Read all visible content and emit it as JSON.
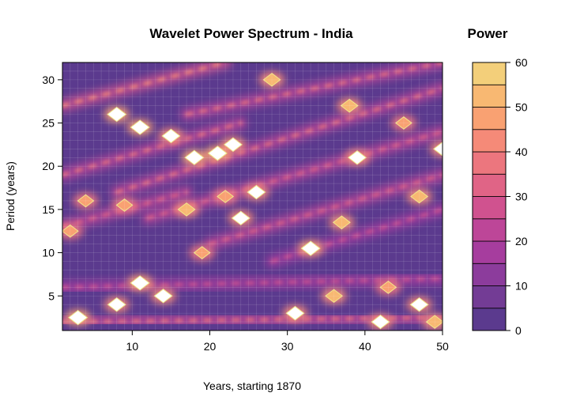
{
  "chart_data": {
    "type": "heatmap",
    "subtype": "filled-contour wavelet power spectrum",
    "title": "Wavelet Power Spectrum - India",
    "xlabel": "Years, starting 1870",
    "ylabel": "Period (years)",
    "xlim": [
      1,
      50
    ],
    "ylim": [
      1,
      32
    ],
    "x_ticks": [
      10,
      20,
      30,
      40,
      50
    ],
    "y_ticks": [
      5,
      10,
      15,
      20,
      25,
      30
    ],
    "grid": true,
    "colorbar": {
      "title": "Power",
      "position": "right",
      "range": [
        0,
        60
      ],
      "ticks": [
        0,
        10,
        20,
        30,
        40,
        50,
        60
      ],
      "levels": [
        0,
        5,
        10,
        15,
        20,
        25,
        30,
        35,
        40,
        45,
        50,
        55,
        60
      ],
      "colors": [
        "#5b3a8e",
        "#733c95",
        "#8c3c9c",
        "#a63d9e",
        "#bd4698",
        "#d0528f",
        "#e06486",
        "#ec767e",
        "#f58a78",
        "#f9a172",
        "#f8b872",
        "#f3cf7a",
        "#f0e589"
      ]
    },
    "hotspots": [
      {
        "x": 11,
        "y": 24.5,
        "power": 60
      },
      {
        "x": 8,
        "y": 26,
        "power": 60
      },
      {
        "x": 15,
        "y": 23.5,
        "power": 55
      },
      {
        "x": 18,
        "y": 21,
        "power": 60
      },
      {
        "x": 21,
        "y": 21.5,
        "power": 60
      },
      {
        "x": 23,
        "y": 22.5,
        "power": 55
      },
      {
        "x": 26,
        "y": 17,
        "power": 55
      },
      {
        "x": 24,
        "y": 14,
        "power": 55
      },
      {
        "x": 22,
        "y": 16.5,
        "power": 45
      },
      {
        "x": 17,
        "y": 15,
        "power": 50
      },
      {
        "x": 9,
        "y": 15.5,
        "power": 45
      },
      {
        "x": 4,
        "y": 16,
        "power": 45
      },
      {
        "x": 33,
        "y": 10.5,
        "power": 60
      },
      {
        "x": 37,
        "y": 13.5,
        "power": 50
      },
      {
        "x": 28,
        "y": 30,
        "power": 50
      },
      {
        "x": 38,
        "y": 27,
        "power": 50
      },
      {
        "x": 39,
        "y": 21,
        "power": 55
      },
      {
        "x": 50,
        "y": 22,
        "power": 55
      },
      {
        "x": 47,
        "y": 16.5,
        "power": 50
      },
      {
        "x": 45,
        "y": 25,
        "power": 45
      },
      {
        "x": 2,
        "y": 12.5,
        "power": 45
      },
      {
        "x": 11,
        "y": 6.5,
        "power": 60
      },
      {
        "x": 3,
        "y": 2.5,
        "power": 60
      },
      {
        "x": 8,
        "y": 4,
        "power": 55
      },
      {
        "x": 14,
        "y": 5,
        "power": 55
      },
      {
        "x": 31,
        "y": 3,
        "power": 55
      },
      {
        "x": 36,
        "y": 5,
        "power": 50
      },
      {
        "x": 42,
        "y": 2,
        "power": 55
      },
      {
        "x": 47,
        "y": 4,
        "power": 55
      },
      {
        "x": 49,
        "y": 2,
        "power": 50
      },
      {
        "x": 43,
        "y": 6,
        "power": 45
      },
      {
        "x": 19,
        "y": 10,
        "power": 45
      }
    ],
    "ridges": [
      {
        "x0": 1,
        "y0": 27,
        "x1": 22,
        "y1": 32,
        "power": 40
      },
      {
        "x0": 1,
        "y0": 19,
        "x1": 24,
        "y1": 25,
        "power": 35
      },
      {
        "x0": 8,
        "y0": 17,
        "x1": 50,
        "y1": 29,
        "power": 35
      },
      {
        "x0": 12,
        "y0": 14,
        "x1": 50,
        "y1": 24,
        "power": 30
      },
      {
        "x0": 20,
        "y0": 11,
        "x1": 50,
        "y1": 19,
        "power": 30
      },
      {
        "x0": 28,
        "y0": 9,
        "x1": 50,
        "y1": 15,
        "power": 25
      },
      {
        "x0": 1,
        "y0": 13,
        "x1": 17,
        "y1": 17,
        "power": 30
      },
      {
        "x0": 17,
        "y0": 26,
        "x1": 50,
        "y1": 32,
        "power": 35
      },
      {
        "x0": 1,
        "y0": 6,
        "x1": 50,
        "y1": 7,
        "power": 25
      },
      {
        "x0": 1,
        "y0": 2,
        "x1": 50,
        "y1": 2.5,
        "power": 35
      }
    ]
  }
}
